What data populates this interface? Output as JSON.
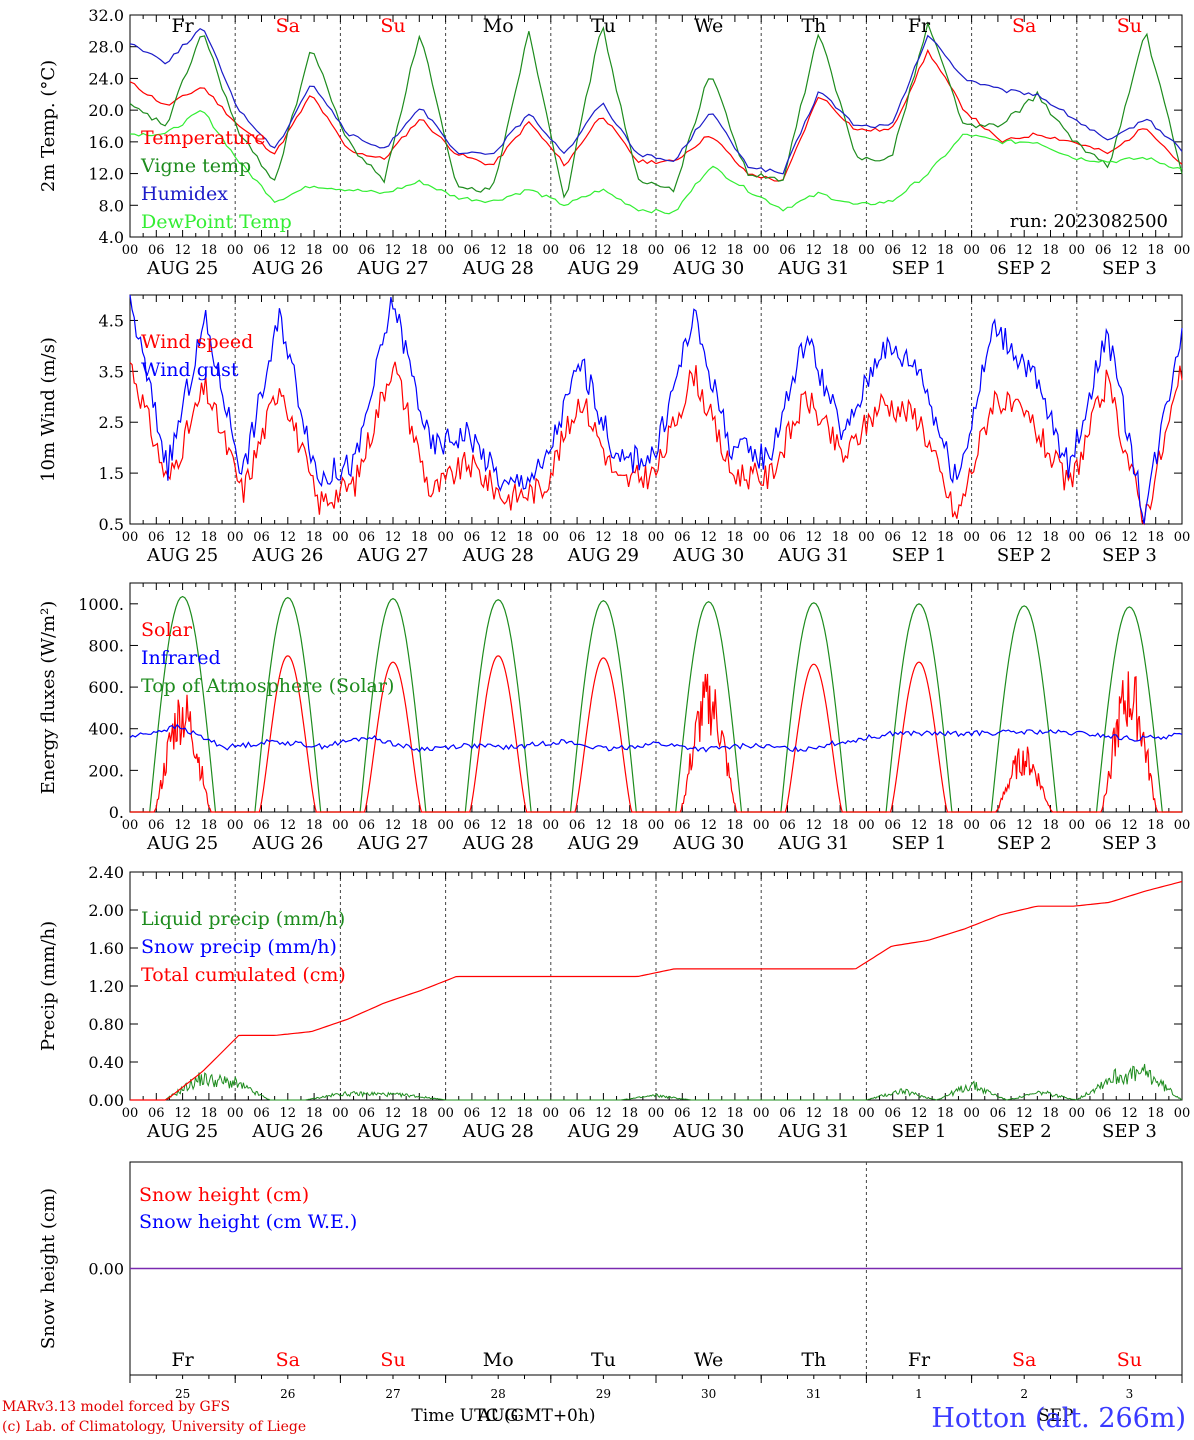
{
  "chart_data": [
    {
      "type": "line",
      "ylabel": "2m Temp. (°C)",
      "ylim": [
        4,
        32
      ],
      "yticks": [
        "4.0",
        "8.0",
        "12.0",
        "16.0",
        "20.0",
        "24.0",
        "28.0",
        "32.0"
      ],
      "day_labels": [
        "Fr",
        "Sa",
        "Su",
        "Mo",
        "Tu",
        "We",
        "Th",
        "Fr",
        "Sa",
        "Su"
      ],
      "annotation": "run: 2023082500",
      "series": [
        {
          "name": "Temperature",
          "color": "#ff0000",
          "values": [
            23.5,
            20.5,
            23,
            18,
            14.5,
            22,
            15,
            13.8,
            19,
            14.5,
            13,
            18.5,
            13,
            19.5,
            13.5,
            13.5,
            17,
            12,
            11,
            22,
            17.5,
            17.5,
            27.5,
            20,
            16,
            17,
            16,
            14.5,
            18,
            13
          ]
        },
        {
          "name": "Vigne temp",
          "color": "#1e8c1e",
          "values": [
            20.5,
            18,
            30,
            17,
            11,
            28,
            16,
            11,
            30,
            10,
            10,
            30,
            8.5,
            31,
            11,
            10,
            25,
            12,
            11,
            30,
            14,
            14,
            31,
            18,
            18,
            22,
            16,
            13,
            30,
            12
          ]
        },
        {
          "name": "Humidex",
          "color": "#1c1cc8",
          "values": [
            28.5,
            26,
            30.5,
            20,
            15,
            23.5,
            17,
            15,
            20.5,
            14.5,
            14.5,
            19.5,
            14.5,
            21,
            14.5,
            13.5,
            20,
            13,
            12,
            22.5,
            18,
            18,
            29.5,
            24,
            22.5,
            22,
            19,
            16,
            19,
            15
          ]
        },
        {
          "name": "DewPoint Temp",
          "color": "#33ee33",
          "values": [
            17,
            17,
            20,
            13.5,
            8.5,
            10.5,
            10,
            9.5,
            11,
            9,
            8.5,
            10,
            8,
            10,
            7.5,
            7,
            13,
            10,
            7.5,
            9.5,
            8,
            8.5,
            12,
            17,
            16,
            16,
            14,
            13.5,
            14,
            12.5
          ]
        }
      ]
    },
    {
      "type": "line",
      "ylabel": "10m Wind (m/s)",
      "ylim": [
        0.5,
        5
      ],
      "yticks": [
        "0.5",
        "1.5",
        "2.5",
        "3.5",
        "4.5"
      ],
      "series": [
        {
          "name": "Wind speed",
          "color": "#ff0000",
          "values": [
            3.7,
            1.3,
            3.2,
            1.1,
            3.3,
            0.9,
            1.3,
            3.7,
            1.1,
            1.7,
            1.0,
            1.2,
            3.0,
            1.3,
            1.5,
            3.5,
            1.5,
            1.4,
            3.0,
            1.8,
            2.9,
            2.6,
            0.6,
            3.0,
            2.5,
            1.2,
            3.3,
            0.6,
            3.5
          ]
        },
        {
          "name": "Wind gust",
          "color": "#0000ff",
          "values": [
            4.9,
            1.6,
            4.5,
            1.5,
            4.6,
            1.4,
            1.7,
            4.9,
            2.0,
            2.3,
            1.2,
            1.6,
            3.7,
            1.7,
            1.9,
            4.6,
            2.0,
            1.8,
            4.2,
            2.2,
            4.0,
            3.6,
            1.3,
            4.4,
            3.5,
            1.6,
            4.3,
            0.7,
            4.4
          ]
        }
      ]
    },
    {
      "type": "line",
      "ylabel": "Energy fluxes (W/m²)",
      "ylim": [
        0,
        1100
      ],
      "yticks": [
        "0.",
        "200.",
        "400.",
        "600.",
        "800.",
        "1000."
      ],
      "series": [
        {
          "name": "Solar",
          "color": "#ff0000",
          "peaks": [
            580,
            750,
            720,
            750,
            740,
            650,
            710,
            720,
            310,
            680
          ]
        },
        {
          "name": "Infrared",
          "color": "#0000ff",
          "values": [
            360,
            410,
            310,
            340,
            315,
            360,
            300,
            320,
            310,
            340,
            300,
            330,
            300,
            320,
            300,
            340,
            380,
            375,
            380,
            385,
            375,
            350,
            370
          ]
        },
        {
          "name": "Top of Atmosphere (Solar)",
          "color": "#1e8c1e",
          "peaks": [
            1035,
            1030,
            1025,
            1020,
            1015,
            1010,
            1005,
            1000,
            990,
            985
          ]
        }
      ]
    },
    {
      "type": "line",
      "ylabel": "Precip (mm/h)",
      "ylim": [
        0,
        2.4
      ],
      "yticks": [
        "0.00",
        "0.40",
        "0.80",
        "1.20",
        "1.60",
        "2.00",
        "2.40"
      ],
      "series": [
        {
          "name": "Liquid precip (mm/h)",
          "color": "#1e8c1e",
          "values": [
            0,
            0,
            0.28,
            0.22,
            0,
            0,
            0.08,
            0.08,
            0.06,
            0,
            0,
            0,
            0,
            0,
            0,
            0.06,
            0,
            0,
            0,
            0,
            0,
            0,
            0.12,
            0,
            0.2,
            0,
            0.1,
            0,
            0.3,
            0.35,
            0
          ]
        },
        {
          "name": "Snow precip (mm/h)",
          "color": "#0000ff",
          "values": []
        },
        {
          "name": "Total cumulated (cm)",
          "color": "#ff0000",
          "values": [
            0,
            0,
            0.3,
            0.68,
            0.68,
            0.72,
            0.85,
            1.02,
            1.15,
            1.3,
            1.3,
            1.3,
            1.3,
            1.3,
            1.3,
            1.38,
            1.38,
            1.38,
            1.38,
            1.38,
            1.38,
            1.62,
            1.68,
            1.8,
            1.95,
            2.04,
            2.04,
            2.08,
            2.2,
            2.3
          ]
        }
      ]
    },
    {
      "type": "line",
      "ylabel": "Snow height (cm)",
      "ytick": "0.00",
      "series": [
        {
          "name": "Snow height (cm)",
          "color": "#ff0000",
          "values": [
            0,
            0
          ]
        },
        {
          "name": "Snow height (cm W.E.)",
          "color": "#0000ff",
          "values": [
            0,
            0
          ]
        }
      ],
      "day_labels": [
        "Fr",
        "Sa",
        "Su",
        "Mo",
        "Tu",
        "We",
        "Th",
        "Fr",
        "Sa",
        "Su"
      ],
      "day_numbers": [
        "25",
        "26",
        "27",
        "28",
        "29",
        "30",
        "31",
        "1",
        "2",
        "3"
      ],
      "month_labels": [
        "AUG",
        "SEP"
      ]
    }
  ],
  "x_axis": {
    "hour_labels": [
      "00",
      "06",
      "12",
      "18"
    ],
    "date_labels": [
      "AUG 25",
      "AUG 26",
      "AUG 27",
      "AUG 28",
      "AUG 29",
      "AUG 30",
      "AUG 31",
      "SEP  1",
      "SEP  2",
      "SEP  3"
    ],
    "title": "Time UTC (GMT+0h)"
  },
  "weekend_color": "#ff0000",
  "weekday_color": "#000000",
  "footer": {
    "credit_line1": "MARv3.13 model forced by GFS",
    "credit_line2": "(c) Lab. of Climatology, University of Liege",
    "station": "Hotton (alt. 266m)"
  }
}
